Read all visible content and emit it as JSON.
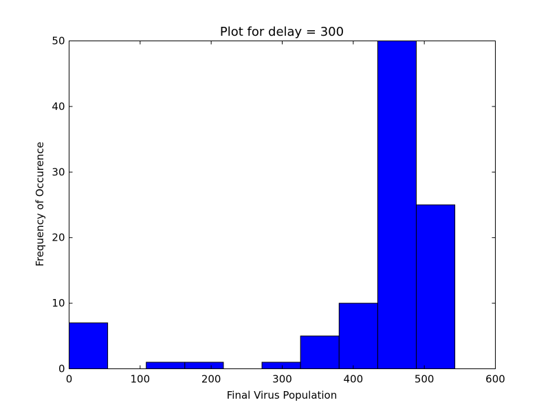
{
  "chart_data": {
    "type": "bar",
    "title": "Plot for delay = 300",
    "xlabel": "Final Virus Population",
    "ylabel": "Frequency of Occurence",
    "xlim": [
      0,
      600
    ],
    "ylim": [
      0,
      50
    ],
    "xticks": [
      0,
      100,
      200,
      300,
      400,
      500,
      600
    ],
    "yticks": [
      0,
      10,
      20,
      30,
      40,
      50
    ],
    "grid": false,
    "bar_color": "#0000ff",
    "bins": [
      {
        "x0": 0,
        "x1": 54.3,
        "value": 7
      },
      {
        "x0": 54.3,
        "x1": 108.6,
        "value": 0
      },
      {
        "x0": 108.6,
        "x1": 162.9,
        "value": 1
      },
      {
        "x0": 162.9,
        "x1": 217.2,
        "value": 1
      },
      {
        "x0": 217.2,
        "x1": 271.5,
        "value": 0
      },
      {
        "x0": 271.5,
        "x1": 325.8,
        "value": 1
      },
      {
        "x0": 325.8,
        "x1": 380.1,
        "value": 5
      },
      {
        "x0": 380.1,
        "x1": 434.4,
        "value": 10
      },
      {
        "x0": 434.4,
        "x1": 488.7,
        "value": 50
      },
      {
        "x0": 488.7,
        "x1": 543.0,
        "value": 25
      }
    ]
  }
}
